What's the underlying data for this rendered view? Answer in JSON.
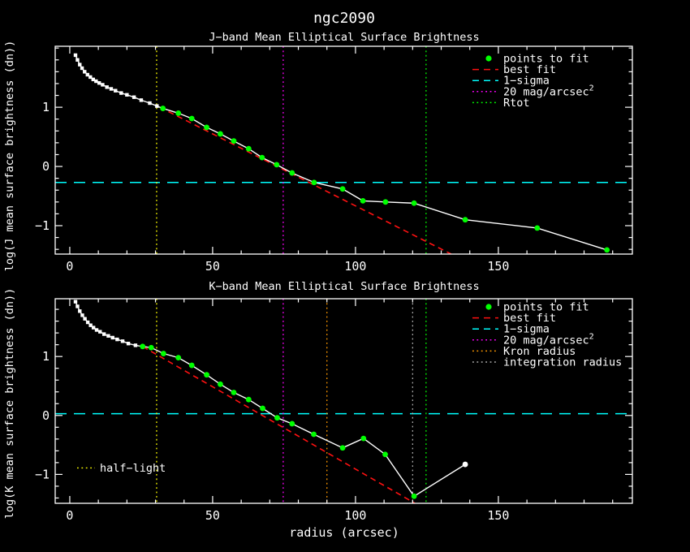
{
  "page": {
    "title": "ngc2090",
    "xlabel": "radius (arcsec)"
  },
  "colors": {
    "background": "#000000",
    "axis": "#ffffff",
    "curve": "#ffffff",
    "points_to_fit": "#00ff00",
    "best_fit": "#ff1111",
    "one_sigma": "#00ffff",
    "mag20": "#ff00ff",
    "rtot": "#00ff00",
    "kron": "#ff9900",
    "integration": "#b0b0b0",
    "half_light": "#ffff00"
  },
  "chart_data": [
    {
      "type": "line",
      "panel": "J",
      "title": "J−band Mean Elliptical Surface Brightness",
      "ylabel": "log(J mean surface brightness (dn))",
      "xlim": [
        -5.1,
        196.9
      ],
      "ylim": [
        -1.48,
        2.03
      ],
      "xticks": [
        0,
        50,
        100,
        150
      ],
      "yticks": [
        -1,
        0,
        1
      ],
      "x_minor_step": 10,
      "y_minor_step": 0.2,
      "white_points": [
        [
          2,
          1.88
        ],
        [
          2.7,
          1.8
        ],
        [
          3.5,
          1.72
        ],
        [
          4.3,
          1.66
        ],
        [
          5.2,
          1.6
        ],
        [
          6.2,
          1.55
        ],
        [
          7.2,
          1.51
        ],
        [
          8.2,
          1.47
        ],
        [
          9.2,
          1.44
        ],
        [
          10.3,
          1.41
        ],
        [
          11.5,
          1.38
        ],
        [
          13,
          1.34
        ],
        [
          14.5,
          1.31
        ],
        [
          16,
          1.28
        ],
        [
          18,
          1.24
        ],
        [
          20,
          1.21
        ],
        [
          22.5,
          1.17
        ],
        [
          25,
          1.12
        ],
        [
          28,
          1.07
        ],
        [
          30.5,
          1.02
        ]
      ],
      "fit_points": [
        [
          32.6,
          0.98
        ],
        [
          38,
          0.9
        ],
        [
          42.7,
          0.81
        ],
        [
          47.9,
          0.66
        ],
        [
          52.7,
          0.55
        ],
        [
          57.4,
          0.43
        ],
        [
          62.6,
          0.3
        ],
        [
          67.3,
          0.15
        ],
        [
          72.4,
          0.03
        ],
        [
          77.8,
          -0.11
        ],
        [
          85.5,
          -0.27
        ],
        [
          95.5,
          -0.38
        ],
        [
          102.6,
          -0.58
        ],
        [
          110.5,
          -0.6
        ],
        [
          120.5,
          -0.62
        ],
        [
          138.4,
          -0.9
        ],
        [
          163.6,
          -1.04
        ],
        [
          188,
          -1.41
        ]
      ],
      "end_white_point": null,
      "best_fit_line": [
        [
          31.5,
          1.0
        ],
        [
          133.5,
          -1.48
        ]
      ],
      "ref_lines": {
        "one_sigma_y": -0.27,
        "mag20_x": 74.7,
        "rtot_x": 124.7,
        "half_light_x": 30.4
      },
      "legend": [
        {
          "label": "points to fit",
          "sup": "",
          "color": "#00ff00",
          "sample": "dot"
        },
        {
          "label": "best fit",
          "sup": "",
          "color": "#ff1111",
          "sample": "dash"
        },
        {
          "label": "1−sigma",
          "sup": "",
          "color": "#00ffff",
          "sample": "dash"
        },
        {
          "label": "20 mag/arcsec",
          "sup": "2",
          "color": "#ff00ff",
          "sample": "dots"
        },
        {
          "label": "Rtot",
          "sup": "",
          "color": "#00ff00",
          "sample": "dots"
        }
      ],
      "annotation": null
    },
    {
      "type": "line",
      "panel": "K",
      "title": "K−band Mean Elliptical Surface Brightness",
      "ylabel": "log(K mean surface brightness (dn))",
      "xlim": [
        -5.1,
        196.9
      ],
      "ylim": [
        -1.49,
        1.98
      ],
      "xticks": [
        0,
        50,
        100,
        150
      ],
      "yticks": [
        -1,
        0,
        1
      ],
      "x_minor_step": 10,
      "y_minor_step": 0.2,
      "white_points": [
        [
          2,
          1.93
        ],
        [
          2.7,
          1.85
        ],
        [
          3.5,
          1.77
        ],
        [
          4.4,
          1.7
        ],
        [
          5.3,
          1.64
        ],
        [
          6.3,
          1.58
        ],
        [
          7.3,
          1.53
        ],
        [
          8.3,
          1.49
        ],
        [
          9.4,
          1.45
        ],
        [
          10.6,
          1.42
        ],
        [
          12,
          1.38
        ],
        [
          13.5,
          1.35
        ],
        [
          15,
          1.32
        ],
        [
          16.6,
          1.29
        ],
        [
          18.5,
          1.26
        ],
        [
          20.5,
          1.22
        ],
        [
          23,
          1.19
        ]
      ],
      "fit_points": [
        [
          25.5,
          1.17
        ],
        [
          28.5,
          1.15
        ],
        [
          32.8,
          1.05
        ],
        [
          38,
          0.98
        ],
        [
          42.7,
          0.85
        ],
        [
          47.9,
          0.69
        ],
        [
          52.7,
          0.53
        ],
        [
          57.4,
          0.39
        ],
        [
          62.6,
          0.27
        ],
        [
          67.5,
          0.12
        ],
        [
          72.6,
          -0.04
        ],
        [
          77.8,
          -0.14
        ],
        [
          85.4,
          -0.32
        ],
        [
          95.5,
          -0.55
        ],
        [
          102.8,
          -0.39
        ],
        [
          110.4,
          -0.66
        ],
        [
          120.5,
          -1.37
        ]
      ],
      "end_white_point": [
        138.4,
        -0.83
      ],
      "best_fit_line": [
        [
          25.5,
          1.17
        ],
        [
          120.8,
          -1.49
        ]
      ],
      "ref_lines": {
        "one_sigma_y": 0.03,
        "mag20_x": 74.7,
        "kron_x": 90.0,
        "integration_x": 120.0,
        "rtot_x": 124.7,
        "half_light_x": 30.4
      },
      "legend": [
        {
          "label": "points to fit",
          "sup": "",
          "color": "#00ff00",
          "sample": "dot"
        },
        {
          "label": "best fit",
          "sup": "",
          "color": "#ff1111",
          "sample": "dash"
        },
        {
          "label": "1−sigma",
          "sup": "",
          "color": "#00ffff",
          "sample": "dash"
        },
        {
          "label": "20 mag/arcsec",
          "sup": "2",
          "color": "#ff00ff",
          "sample": "dots"
        },
        {
          "label": "Kron radius",
          "sup": "",
          "color": "#ff9900",
          "sample": "dots"
        },
        {
          "label": "integration radius",
          "sup": "",
          "color": "#b0b0b0",
          "sample": "dots"
        }
      ],
      "annotation": {
        "text": "half−light",
        "color": "#ffff00",
        "y_value": -0.89
      }
    }
  ]
}
